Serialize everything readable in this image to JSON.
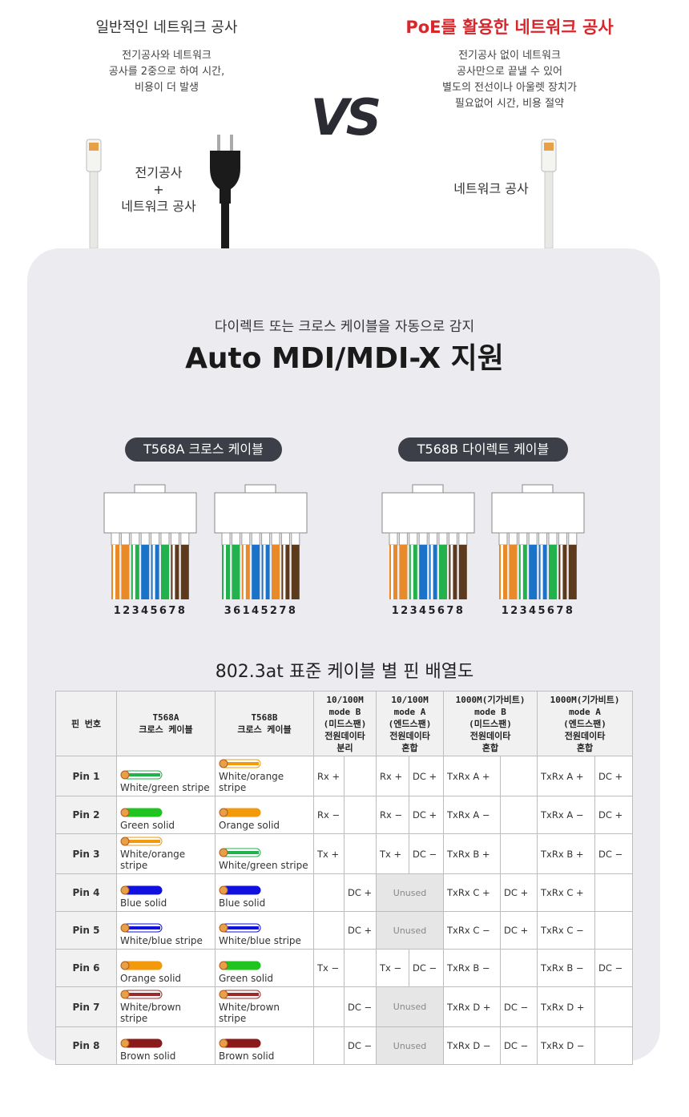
{
  "compare": {
    "left": {
      "title": "일반적인 네트워크 공사",
      "desc": [
        "전기공사와 네트워크",
        "공사를 2중으로 하여 시간,",
        "비용이 더 발생"
      ],
      "label": [
        "전기공사",
        "+",
        "네트워크 공사"
      ]
    },
    "vs": "VS",
    "right": {
      "title": "PoE를 활용한 네트워크 공사",
      "desc": [
        "전기공사 없이 네트워크",
        "공사만으로 끝낼 수 있어",
        "별도의 전선이나 아울렛 장치가",
        "필요없어 시간, 비용 절약"
      ],
      "label": [
        "네트워크 공사"
      ]
    }
  },
  "mdi": {
    "subtitle": "다이렉트 또는 크로스 케이블을 자동으로 감지",
    "title": "Auto MDI/MDI-X 지원",
    "badges": [
      {
        "label": "T568A 크로스 케이블",
        "connectors": [
          {
            "pins": "12345678",
            "wires": [
              "#e8892a",
              "#e8892a",
              "#22b14c",
              "#1a73c8",
              "#1a73c8",
              "#22b14c",
              "#5c3a1e",
              "#5c3a1e"
            ]
          },
          {
            "pins": "36145278",
            "wires": [
              "#22b14c",
              "#22b14c",
              "#e8892a",
              "#1a73c8",
              "#1a73c8",
              "#e8892a",
              "#5c3a1e",
              "#5c3a1e"
            ]
          }
        ]
      },
      {
        "label": "T568B 다이렉트 케이블",
        "connectors": [
          {
            "pins": "12345678",
            "wires": [
              "#e8892a",
              "#e8892a",
              "#22b14c",
              "#1a73c8",
              "#1a73c8",
              "#22b14c",
              "#5c3a1e",
              "#5c3a1e"
            ]
          },
          {
            "pins": "12345678",
            "wires": [
              "#e8892a",
              "#e8892a",
              "#22b14c",
              "#1a73c8",
              "#1a73c8",
              "#22b14c",
              "#5c3a1e",
              "#5c3a1e"
            ]
          }
        ]
      }
    ]
  },
  "table": {
    "title": "802.3at 표준 케이블 별 핀 배열도",
    "header": [
      [
        "핀 번호"
      ],
      [
        "T568A",
        "크로스 케이블"
      ],
      [
        "T568B",
        "크로스 케이블"
      ],
      [
        "10/100M",
        "mode B",
        "(미드스팬)",
        "전원데이타",
        "분리"
      ],
      [
        "10/100M",
        "mode A",
        "(엔드스팬)",
        "전원데이타",
        "혼합"
      ],
      [
        "1000M(기가비트)",
        "mode B",
        "(미드스팬)",
        "전원데이타",
        "혼합"
      ],
      [
        "1000M(기가비트)",
        "mode A",
        "(엔드스팬)",
        "전원데이타",
        "혼합"
      ]
    ],
    "rows": [
      {
        "pin": "Pin 1",
        "a": {
          "label": "White/green stripe",
          "color": "#22b14c",
          "stripe": true
        },
        "b": {
          "label": "White/orange stripe",
          "color": "#f29a0c",
          "stripe": true
        },
        "groups": [
          [
            "Rx +",
            null
          ],
          [
            "Rx +",
            "DC +"
          ],
          [
            "TxRx A +",
            null
          ],
          [
            "TxRx A +",
            "DC +"
          ]
        ]
      },
      {
        "pin": "Pin 2",
        "a": {
          "label": "Green solid",
          "color": "#1fc41f",
          "stripe": false
        },
        "b": {
          "label": "Orange solid",
          "color": "#f29a0c",
          "stripe": false
        },
        "groups": [
          [
            "Rx −",
            null
          ],
          [
            "Rx −",
            "DC +"
          ],
          [
            "TxRx A −",
            null
          ],
          [
            "TxRx A −",
            "DC +"
          ]
        ]
      },
      {
        "pin": "Pin 3",
        "a": {
          "label": "White/orange stripe",
          "color": "#f29a0c",
          "stripe": true
        },
        "b": {
          "label": "White/green stripe",
          "color": "#22b14c",
          "stripe": true
        },
        "groups": [
          [
            "Tx +",
            null
          ],
          [
            "Tx +",
            "DC −"
          ],
          [
            "TxRx B +",
            null
          ],
          [
            "TxRx B +",
            "DC −"
          ]
        ]
      },
      {
        "pin": "Pin 4",
        "a": {
          "label": "Blue solid",
          "color": "#1010e0",
          "stripe": false
        },
        "b": {
          "label": "Blue solid",
          "color": "#1010e0",
          "stripe": false
        },
        "groups": [
          [
            null,
            "DC +"
          ],
          "Unused",
          [
            "TxRx C +",
            "DC +"
          ],
          [
            "TxRx C +",
            null
          ]
        ]
      },
      {
        "pin": "Pin 5",
        "a": {
          "label": "White/blue stripe",
          "color": "#1010e0",
          "stripe": true
        },
        "b": {
          "label": "White/blue stripe",
          "color": "#1010e0",
          "stripe": true
        },
        "groups": [
          [
            null,
            "DC +"
          ],
          "Unused",
          [
            "TxRx C −",
            "DC +"
          ],
          [
            "TxRx C −",
            null
          ]
        ]
      },
      {
        "pin": "Pin 6",
        "a": {
          "label": "Orange solid",
          "color": "#f29a0c",
          "stripe": false
        },
        "b": {
          "label": "Green solid",
          "color": "#1fc41f",
          "stripe": false
        },
        "groups": [
          [
            "Tx −",
            null
          ],
          [
            "Tx −",
            "DC −"
          ],
          [
            "TxRx B −",
            null
          ],
          [
            "TxRx B −",
            "DC −"
          ]
        ]
      },
      {
        "pin": "Pin 7",
        "a": {
          "label": "White/brown stripe",
          "color": "#9b2a2a",
          "stripe": true
        },
        "b": {
          "label": "White/brown stripe",
          "color": "#9b2a2a",
          "stripe": true
        },
        "groups": [
          [
            null,
            "DC −"
          ],
          "Unused",
          [
            "TxRx D +",
            "DC −"
          ],
          [
            "TxRx D +",
            null
          ]
        ]
      },
      {
        "pin": "Pin 8",
        "a": {
          "label": "Brown solid",
          "color": "#8b1a1a",
          "stripe": false
        },
        "b": {
          "label": "Brown solid",
          "color": "#8b1a1a",
          "stripe": false
        },
        "groups": [
          [
            null,
            "DC −"
          ],
          "Unused",
          [
            "TxRx D −",
            "DC −"
          ],
          [
            "TxRx D −",
            null
          ]
        ]
      }
    ]
  }
}
